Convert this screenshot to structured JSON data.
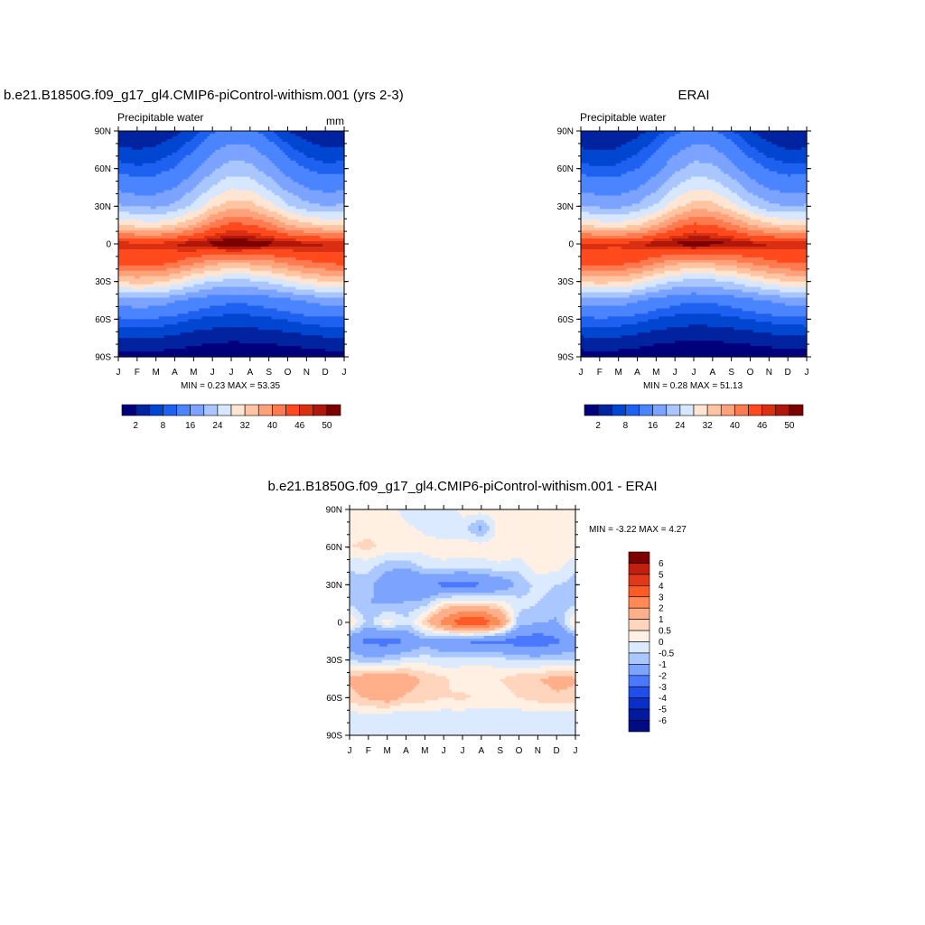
{
  "panels": [
    {
      "title": "b.e21.B1850G.f09_g17_gl4.CMIP6-piControl-withism.001 (yrs 2-3)",
      "left_label": "Precipitable water",
      "right_label": "mm",
      "stats": "MIN =   0.23 MAX =  53.35",
      "lat_ticks": [
        "90N",
        "60N",
        "30N",
        "0",
        "30S",
        "60S",
        "90S"
      ],
      "month_ticks": [
        "J",
        "F",
        "M",
        "A",
        "M",
        "J",
        "J",
        "A",
        "S",
        "O",
        "N",
        "D",
        "J"
      ],
      "colorbar_labels": [
        "2",
        "8",
        "16",
        "24",
        "32",
        "40",
        "46",
        "50"
      ]
    },
    {
      "title": "ERAI",
      "left_label": "Precipitable water",
      "right_label": "",
      "stats": "MIN =   0.28 MAX =  51.13",
      "lat_ticks": [
        "90N",
        "60N",
        "30N",
        "0",
        "30S",
        "60S",
        "90S"
      ],
      "month_ticks": [
        "J",
        "F",
        "M",
        "A",
        "M",
        "J",
        "J",
        "A",
        "S",
        "O",
        "N",
        "D",
        "J"
      ],
      "colorbar_labels": [
        "2",
        "8",
        "16",
        "24",
        "32",
        "40",
        "46",
        "50"
      ]
    },
    {
      "title": "b.e21.B1850G.f09_g17_gl4.CMIP6-piControl-withism.001 - ERAI",
      "stats": "MIN =  -3.22 MAX =   4.27",
      "lat_ticks": [
        "90N",
        "60N",
        "30N",
        "0",
        "30S",
        "60S",
        "90S"
      ],
      "month_ticks": [
        "J",
        "F",
        "M",
        "A",
        "M",
        "J",
        "J",
        "A",
        "S",
        "O",
        "N",
        "D",
        "J"
      ],
      "colorbar_labels": [
        "6",
        "5",
        "4",
        "3",
        "2",
        "1",
        "0.5",
        "0",
        "-0.5",
        "-1",
        "-2",
        "-3",
        "-4",
        "-5",
        "-6"
      ]
    }
  ],
  "colors": {
    "abs_scale": [
      "#00007d",
      "#0023a0",
      "#0046d0",
      "#1e60f0",
      "#4a84ff",
      "#7ba3ff",
      "#a9c6ff",
      "#d6e7ff",
      "#ffe5d2",
      "#ffc4a2",
      "#ffa27c",
      "#ff7a4f",
      "#ff4a1e",
      "#d92f12",
      "#b0170b",
      "#7d0000"
    ],
    "diff_scale": [
      "#7d0000",
      "#c0200d",
      "#e0391a",
      "#ff5a28",
      "#ff8a55",
      "#ffb08a",
      "#ffd5bd",
      "#fff0e3",
      "#dceaff",
      "#aac8ff",
      "#7ca4ff",
      "#4a78ff",
      "#1f4fe8",
      "#0a2ec8",
      "#001aa0",
      "#000c80"
    ]
  },
  "chart_data": [
    {
      "type": "heatmap",
      "title": "b.e21.B1850G.f09_g17_gl4.CMIP6-piControl-withism.001 (yrs 2-3)",
      "left_string": "Precipitable water",
      "units": "mm",
      "x": [
        "J",
        "F",
        "M",
        "A",
        "M",
        "J",
        "J",
        "A",
        "S",
        "O",
        "N",
        "D",
        "J"
      ],
      "y": [
        90,
        75,
        60,
        45,
        30,
        15,
        0,
        -15,
        -30,
        -45,
        -60,
        -75,
        -90
      ],
      "contour_levels": [
        2,
        4,
        6,
        8,
        12,
        16,
        20,
        24,
        28,
        32,
        36,
        40,
        44,
        46,
        48,
        50
      ],
      "z": [
        [
          2.5,
          2.3,
          2.6,
          3.3,
          5.0,
          7.5,
          9.2,
          8.8,
          6.3,
          4.0,
          2.8,
          2.3,
          2.5
        ],
        [
          4.4,
          4.0,
          4.4,
          5.6,
          7.8,
          11.3,
          13.6,
          13.1,
          9.9,
          6.8,
          5.0,
          4.2,
          4.4
        ],
        [
          7.0,
          6.4,
          6.8,
          8.2,
          10.9,
          15.1,
          18.0,
          17.4,
          13.8,
          10.0,
          7.8,
          6.8,
          7.0
        ],
        [
          11.0,
          10.0,
          10.2,
          11.8,
          15.3,
          20.3,
          23.6,
          22.9,
          19.2,
          14.5,
          11.7,
          10.6,
          11.0
        ],
        [
          16.7,
          15.3,
          15.2,
          17.0,
          21.0,
          27.0,
          30.5,
          29.8,
          25.9,
          20.6,
          17.3,
          16.0,
          16.7
        ],
        [
          28.1,
          26.5,
          26.0,
          28.0,
          32.3,
          38.0,
          41.2,
          40.5,
          37.2,
          32.4,
          29.2,
          27.9,
          28.1
        ],
        [
          45.6,
          45.1,
          44.8,
          46.2,
          48.1,
          49.0,
          50.9,
          49.8,
          49.0,
          47.8,
          47.0,
          46.3,
          45.6
        ],
        [
          41.1,
          41.5,
          41.6,
          40.0,
          36.8,
          33.3,
          32.4,
          32.9,
          34.5,
          36.9,
          39.1,
          40.6,
          41.1
        ],
        [
          28.6,
          29.5,
          29.0,
          26.5,
          22.6,
          19.7,
          18.5,
          19.0,
          20.6,
          23.4,
          26.1,
          28.0,
          28.6
        ],
        [
          14.0,
          14.6,
          14.2,
          12.5,
          10.5,
          9.2,
          8.6,
          8.8,
          9.7,
          11.0,
          12.5,
          13.6,
          14.0
        ],
        [
          7.5,
          7.8,
          7.6,
          6.9,
          6.0,
          5.4,
          5.1,
          5.2,
          5.6,
          6.2,
          6.9,
          7.4,
          7.5
        ],
        [
          3.9,
          4.2,
          4.0,
          3.5,
          2.9,
          2.6,
          2.4,
          2.5,
          2.7,
          3.0,
          3.4,
          3.8,
          3.9
        ],
        [
          1.1,
          1.2,
          1.1,
          0.9,
          0.7,
          0.5,
          0.4,
          0.4,
          0.5,
          0.6,
          0.8,
          1.0,
          1.1
        ]
      ],
      "colorbar_labels": [
        "2",
        "8",
        "16",
        "24",
        "32",
        "40",
        "46",
        "50"
      ],
      "min": 0.23,
      "max": 53.35
    },
    {
      "type": "heatmap",
      "title": "ERAI",
      "left_string": "Precipitable water",
      "x": [
        "J",
        "F",
        "M",
        "A",
        "M",
        "J",
        "J",
        "A",
        "S",
        "O",
        "N",
        "D",
        "J"
      ],
      "y": [
        90,
        75,
        60,
        45,
        30,
        15,
        0,
        -15,
        -30,
        -45,
        -60,
        -75,
        -90
      ],
      "contour_levels": [
        2,
        4,
        6,
        8,
        12,
        16,
        20,
        24,
        28,
        32,
        36,
        40,
        44,
        46,
        48,
        50
      ],
      "z": [
        [
          2.3,
          2.2,
          2.5,
          3.2,
          4.9,
          7.3,
          9.0,
          8.6,
          6.1,
          3.9,
          2.7,
          2.2,
          2.3
        ],
        [
          4.2,
          3.8,
          4.2,
          5.4,
          7.6,
          11.0,
          13.3,
          12.8,
          9.6,
          6.6,
          4.8,
          4.0,
          4.2
        ],
        [
          6.8,
          6.2,
          6.6,
          8.0,
          10.6,
          14.8,
          17.7,
          17.1,
          13.5,
          9.7,
          7.6,
          6.6,
          6.8
        ],
        [
          10.8,
          9.8,
          10.0,
          11.6,
          15.0,
          20.0,
          23.3,
          22.6,
          18.9,
          14.2,
          11.5,
          10.4,
          10.8
        ],
        [
          16.5,
          15.1,
          15.0,
          16.8,
          20.8,
          26.7,
          30.2,
          29.5,
          25.6,
          20.4,
          17.1,
          15.8,
          16.5
        ],
        [
          27.9,
          26.3,
          25.8,
          27.8,
          32.0,
          37.7,
          40.9,
          40.2,
          36.9,
          32.1,
          29.0,
          27.7,
          27.9
        ],
        [
          45.2,
          44.8,
          44.6,
          45.9,
          47.6,
          48.6,
          49.9,
          49.1,
          48.5,
          47.2,
          46.5,
          45.8,
          45.2
        ],
        [
          40.9,
          41.3,
          41.4,
          39.8,
          36.6,
          33.1,
          32.2,
          32.7,
          34.3,
          36.7,
          38.9,
          40.4,
          40.9
        ],
        [
          28.4,
          29.3,
          28.8,
          26.3,
          22.4,
          19.5,
          18.3,
          18.8,
          20.4,
          23.2,
          25.9,
          27.8,
          28.4
        ],
        [
          13.8,
          14.4,
          14.0,
          12.3,
          10.3,
          9.0,
          8.4,
          8.6,
          9.5,
          10.8,
          12.3,
          13.4,
          13.8
        ],
        [
          7.3,
          7.6,
          7.4,
          6.7,
          5.8,
          5.2,
          4.9,
          5.0,
          5.4,
          6.0,
          6.7,
          7.2,
          7.3
        ],
        [
          3.7,
          4.0,
          3.8,
          3.3,
          2.7,
          2.4,
          2.2,
          2.3,
          2.5,
          2.8,
          3.2,
          3.6,
          3.7
        ],
        [
          1.0,
          1.1,
          1.0,
          0.8,
          0.6,
          0.5,
          0.4,
          0.4,
          0.5,
          0.6,
          0.7,
          0.9,
          1.0
        ]
      ],
      "colorbar_labels": [
        "2",
        "8",
        "16",
        "24",
        "32",
        "40",
        "46",
        "50"
      ],
      "min": 0.28,
      "max": 51.13
    },
    {
      "type": "heatmap",
      "title": "b.e21.B1850G.f09_g17_gl4.CMIP6-piControl-withism.001 - ERAI",
      "x": [
        "J",
        "F",
        "M",
        "A",
        "M",
        "J",
        "J",
        "A",
        "S",
        "O",
        "N",
        "D",
        "J"
      ],
      "y": [
        90,
        75,
        60,
        45,
        30,
        15,
        0,
        -15,
        -30,
        -45,
        -60,
        -75,
        -90
      ],
      "contour_levels": [
        -6,
        -5,
        -4,
        -3,
        -2,
        -1,
        -0.5,
        0,
        0.5,
        1,
        2,
        3,
        4,
        5,
        6
      ],
      "z": [
        [
          0.2,
          0.3,
          0.3,
          -0.2,
          -0.3,
          -0.3,
          0.2,
          0.3,
          0.3,
          0.2,
          0.1,
          0.1,
          0.2
        ],
        [
          0.3,
          0.4,
          0.3,
          0.1,
          -0.1,
          -0.5,
          -0.3,
          -1.2,
          0.3,
          0.4,
          0.3,
          0.2,
          0.3
        ],
        [
          0.5,
          0.6,
          0.4,
          0.3,
          0.2,
          0.4,
          0.3,
          0.3,
          0.4,
          0.4,
          0.4,
          0.3,
          0.5
        ],
        [
          -0.4,
          -0.3,
          -0.8,
          -0.9,
          -0.3,
          -0.2,
          -0.3,
          -0.2,
          -0.1,
          -0.3,
          0.3,
          0.2,
          -0.4
        ],
        [
          -0.7,
          -0.8,
          -1.5,
          -1.9,
          -2.0,
          -2.2,
          -2.4,
          -2.1,
          -1.6,
          -0.9,
          -0.3,
          -0.5,
          -0.7
        ],
        [
          -0.6,
          -1.0,
          -1.1,
          -0.9,
          -0.7,
          0.4,
          0.6,
          0.5,
          0.3,
          -0.3,
          -0.5,
          -0.8,
          -0.6
        ],
        [
          0.6,
          -0.7,
          0.3,
          -0.4,
          0.8,
          2.5,
          3.8,
          4.0,
          2.2,
          -0.8,
          -0.9,
          -1.1,
          0.6
        ],
        [
          -1.6,
          -2.3,
          -2.4,
          -2.0,
          -1.2,
          -1.8,
          -2.0,
          -2.3,
          -2.2,
          -2.5,
          -2.7,
          -2.2,
          -1.6
        ],
        [
          -0.5,
          -0.8,
          -0.6,
          -0.3,
          -0.2,
          -0.4,
          -0.1,
          -0.2,
          -0.3,
          -0.5,
          -0.6,
          -0.4,
          -0.5
        ],
        [
          1.1,
          1.6,
          1.5,
          1.4,
          0.9,
          0.6,
          0.2,
          0.4,
          0.5,
          0.8,
          1.0,
          1.2,
          1.1
        ],
        [
          0.8,
          1.1,
          1.4,
          0.9,
          0.7,
          0.5,
          0.6,
          0.4,
          0.3,
          0.5,
          0.7,
          0.9,
          0.8
        ],
        [
          -0.3,
          -0.2,
          -0.3,
          -0.5,
          -0.2,
          -0.3,
          -0.3,
          -0.4,
          -0.2,
          -0.3,
          -0.2,
          -0.3,
          -0.3
        ],
        [
          -0.2,
          -0.3,
          -0.2,
          -0.2,
          -0.2,
          -0.2,
          -0.2,
          -0.2,
          -0.2,
          -0.2,
          -0.2,
          -0.2,
          -0.2
        ]
      ],
      "colorbar_labels": [
        "6",
        "5",
        "4",
        "3",
        "2",
        "1",
        "0.5",
        "0",
        "-0.5",
        "-1",
        "-2",
        "-3",
        "-4",
        "-5",
        "-6"
      ],
      "min": -3.22,
      "max": 4.27
    }
  ]
}
